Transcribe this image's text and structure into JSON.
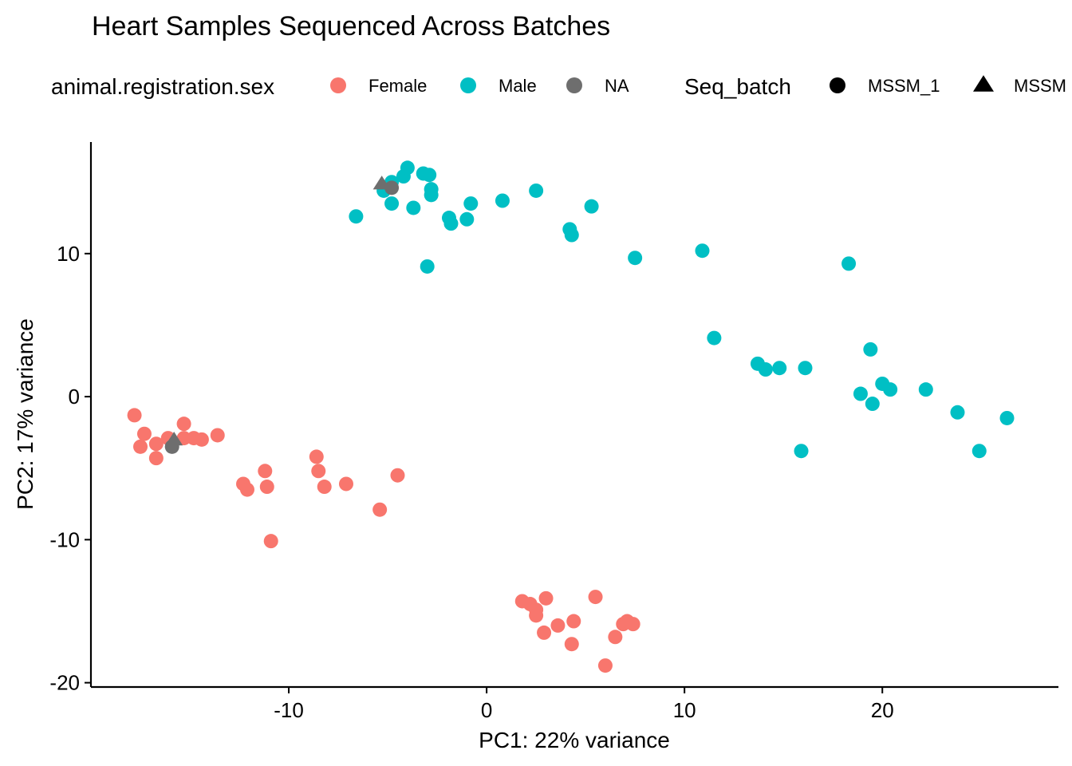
{
  "chart_data": {
    "type": "scatter",
    "title": "Heart Samples Sequenced Across Batches",
    "xlabel": "PC1: 22% variance",
    "ylabel": "PC2: 17% variance",
    "xlim": [
      -20.0,
      28.9
    ],
    "ylim": [
      -20.3,
      17.8
    ],
    "x_ticks": [
      -10,
      0,
      10,
      20
    ],
    "x_tick_labels": [
      "-10",
      "0",
      "10",
      "20"
    ],
    "y_ticks": [
      -20,
      -10,
      0,
      10
    ],
    "y_tick_labels": [
      "-20",
      "-10",
      "0",
      "10"
    ],
    "grid": false,
    "legend_position": "top",
    "colors": {
      "Female": "#F8766D",
      "Male": "#00BFC4",
      "NA": "#6E6E6E"
    },
    "legend": {
      "color_title": "animal.registration.sex",
      "color_entries": [
        "Female",
        "Male",
        "NA"
      ],
      "shape_title": "Seq_batch",
      "shape_entries": [
        "MSSM_1",
        "MSSM"
      ]
    },
    "series": [
      {
        "name": "Female",
        "shape": "MSSM_1",
        "points": [
          [
            -17.8,
            -1.3
          ],
          [
            -17.3,
            -2.6
          ],
          [
            -17.5,
            -3.5
          ],
          [
            -16.7,
            -3.3
          ],
          [
            -16.7,
            -4.3
          ],
          [
            -16.1,
            -2.9
          ],
          [
            -15.3,
            -1.9
          ],
          [
            -15.3,
            -2.9
          ],
          [
            -14.8,
            -2.9
          ],
          [
            -14.4,
            -3.0
          ],
          [
            -13.6,
            -2.7
          ],
          [
            -12.3,
            -6.1
          ],
          [
            -12.1,
            -6.5
          ],
          [
            -11.2,
            -5.2
          ],
          [
            -11.1,
            -6.3
          ],
          [
            -10.9,
            -10.1
          ],
          [
            -8.6,
            -4.2
          ],
          [
            -8.5,
            -5.2
          ],
          [
            -8.2,
            -6.3
          ],
          [
            -7.1,
            -6.1
          ],
          [
            -5.4,
            -7.9
          ],
          [
            -4.5,
            -5.5
          ],
          [
            1.8,
            -14.3
          ],
          [
            2.2,
            -14.5
          ],
          [
            2.5,
            -14.9
          ],
          [
            2.5,
            -15.3
          ],
          [
            3.0,
            -14.1
          ],
          [
            2.9,
            -16.5
          ],
          [
            3.6,
            -16.0
          ],
          [
            4.4,
            -15.7
          ],
          [
            4.3,
            -17.3
          ],
          [
            5.5,
            -14.0
          ],
          [
            6.0,
            -18.8
          ],
          [
            6.5,
            -16.8
          ],
          [
            6.9,
            -15.9
          ],
          [
            7.1,
            -15.7
          ],
          [
            7.4,
            -15.9
          ]
        ]
      },
      {
        "name": "Male",
        "shape": "MSSM_1",
        "points": [
          [
            -6.6,
            12.6
          ],
          [
            -5.2,
            14.4
          ],
          [
            -4.8,
            15.0
          ],
          [
            -4.8,
            13.5
          ],
          [
            -4.2,
            15.4
          ],
          [
            -4.0,
            16.0
          ],
          [
            -3.7,
            13.2
          ],
          [
            -3.2,
            15.6
          ],
          [
            -2.9,
            15.5
          ],
          [
            -2.8,
            14.5
          ],
          [
            -2.8,
            14.1
          ],
          [
            -3.0,
            9.1
          ],
          [
            -1.9,
            12.5
          ],
          [
            -1.8,
            12.1
          ],
          [
            -1.0,
            12.4
          ],
          [
            -0.8,
            13.5
          ],
          [
            0.8,
            13.7
          ],
          [
            2.5,
            14.4
          ],
          [
            4.2,
            11.7
          ],
          [
            4.3,
            11.3
          ],
          [
            5.3,
            13.3
          ],
          [
            7.5,
            9.7
          ],
          [
            10.9,
            10.2
          ],
          [
            11.5,
            4.1
          ],
          [
            18.3,
            9.3
          ],
          [
            13.7,
            2.3
          ],
          [
            14.1,
            1.9
          ],
          [
            14.8,
            2.0
          ],
          [
            16.1,
            2.0
          ],
          [
            15.9,
            -3.8
          ],
          [
            19.4,
            3.3
          ],
          [
            18.9,
            0.2
          ],
          [
            19.5,
            -0.5
          ],
          [
            20.0,
            0.9
          ],
          [
            20.4,
            0.5
          ],
          [
            22.2,
            0.5
          ],
          [
            23.8,
            -1.1
          ],
          [
            24.9,
            -3.8
          ],
          [
            26.3,
            -1.5
          ]
        ]
      },
      {
        "name": "NA",
        "shape": "MSSM_1",
        "points": [
          [
            -4.8,
            14.6
          ],
          [
            -15.9,
            -3.5
          ]
        ]
      },
      {
        "name": "NA",
        "shape": "MSSM",
        "points": [
          [
            -5.3,
            14.9
          ],
          [
            -15.8,
            -3.0
          ]
        ]
      }
    ]
  }
}
